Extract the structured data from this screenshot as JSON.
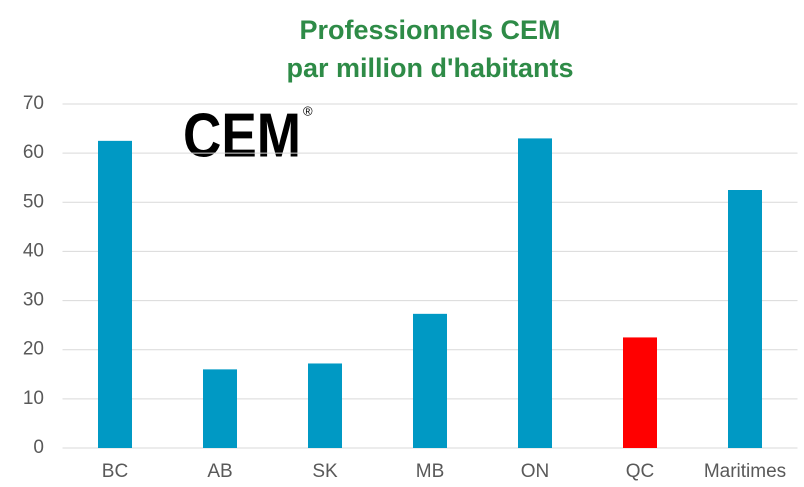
{
  "chart_data": {
    "type": "bar",
    "title": [
      "Professionnels CEM",
      "par million d'habitants"
    ],
    "logo": "CEM",
    "logo_mark": "®",
    "categories": [
      "BC",
      "AB",
      "SK",
      "MB",
      "ON",
      "QC",
      "Maritimes"
    ],
    "values": [
      62.5,
      16,
      17.2,
      27.3,
      63,
      22.5,
      52.5
    ],
    "colors": [
      "#0099c4",
      "#0099c4",
      "#0099c4",
      "#0099c4",
      "#0099c4",
      "#ff0000",
      "#0099c4"
    ],
    "ylim": [
      0,
      70
    ],
    "yticks": [
      0,
      10,
      20,
      30,
      40,
      50,
      60,
      70
    ],
    "grid": true
  }
}
